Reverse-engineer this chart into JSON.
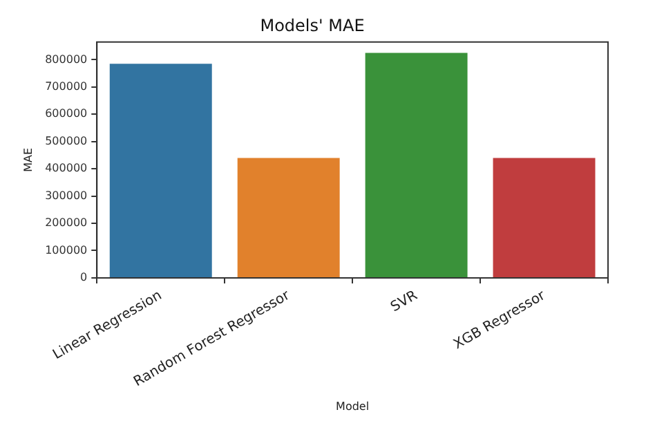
{
  "chart_data": {
    "type": "bar",
    "title": "Models' MAE",
    "xlabel": "Model",
    "ylabel": "MAE",
    "categories": [
      "Linear Regression",
      "Random Forest Regressor",
      "SVR",
      "XGB Regressor"
    ],
    "values": [
      785000,
      440000,
      825000,
      440000
    ],
    "colors": [
      "#3274a1",
      "#e1812c",
      "#3a923a",
      "#c03d3e"
    ],
    "ylim": [
      0,
      865000
    ],
    "yticks": [
      0,
      100000,
      200000,
      300000,
      400000,
      500000,
      600000,
      700000,
      800000
    ],
    "grid": false,
    "legend": false
  }
}
